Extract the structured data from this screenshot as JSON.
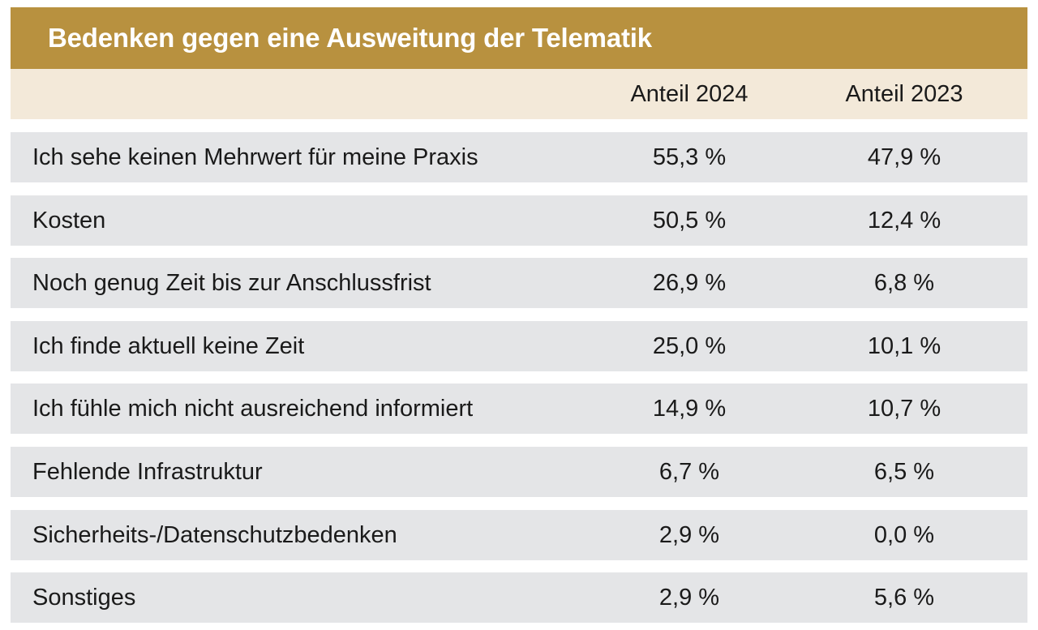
{
  "chart_data": {
    "type": "table",
    "title": "Bedenken gegen eine Ausweitung der Telematik",
    "columns": [
      "",
      "Anteil 2024",
      "Anteil 2023"
    ],
    "rows": [
      {
        "label": "Ich sehe keinen Mehrwert für meine Praxis",
        "v2024": "55,3 %",
        "v2023": "47,9 %"
      },
      {
        "label": "Kosten",
        "v2024": "50,5 %",
        "v2023": "12,4 %"
      },
      {
        "label": "Noch genug Zeit bis zur Anschlussfrist",
        "v2024": "26,9 %",
        "v2023": "6,8 %"
      },
      {
        "label": "Ich finde aktuell keine Zeit",
        "v2024": "25,0 %",
        "v2023": "10,1 %"
      },
      {
        "label": "Ich fühle mich nicht ausreichend informiert",
        "v2024": "14,9 %",
        "v2023": "10,7 %"
      },
      {
        "label": "Fehlende Infrastruktur",
        "v2024": "6,7 %",
        "v2023": "6,5 %"
      },
      {
        "label": "Sicherheits-/Datenschutzbedenken",
        "v2024": "2,9 %",
        "v2023": "0,0 %"
      },
      {
        "label": "Sonstiges",
        "v2024": "2,9 %",
        "v2023": "5,6 %"
      }
    ],
    "values_2024": [
      55.3,
      50.5,
      26.9,
      25.0,
      14.9,
      6.7,
      2.9,
      2.9
    ],
    "values_2023": [
      47.9,
      12.4,
      6.8,
      10.1,
      10.7,
      6.5,
      0.0,
      5.6
    ],
    "unit": "%"
  },
  "colors": {
    "title_bar": "#b8913f",
    "header_row": "#f3e9d9",
    "data_row": "#e4e5e7",
    "title_text": "#ffffff",
    "body_text": "#1a1a1a"
  }
}
